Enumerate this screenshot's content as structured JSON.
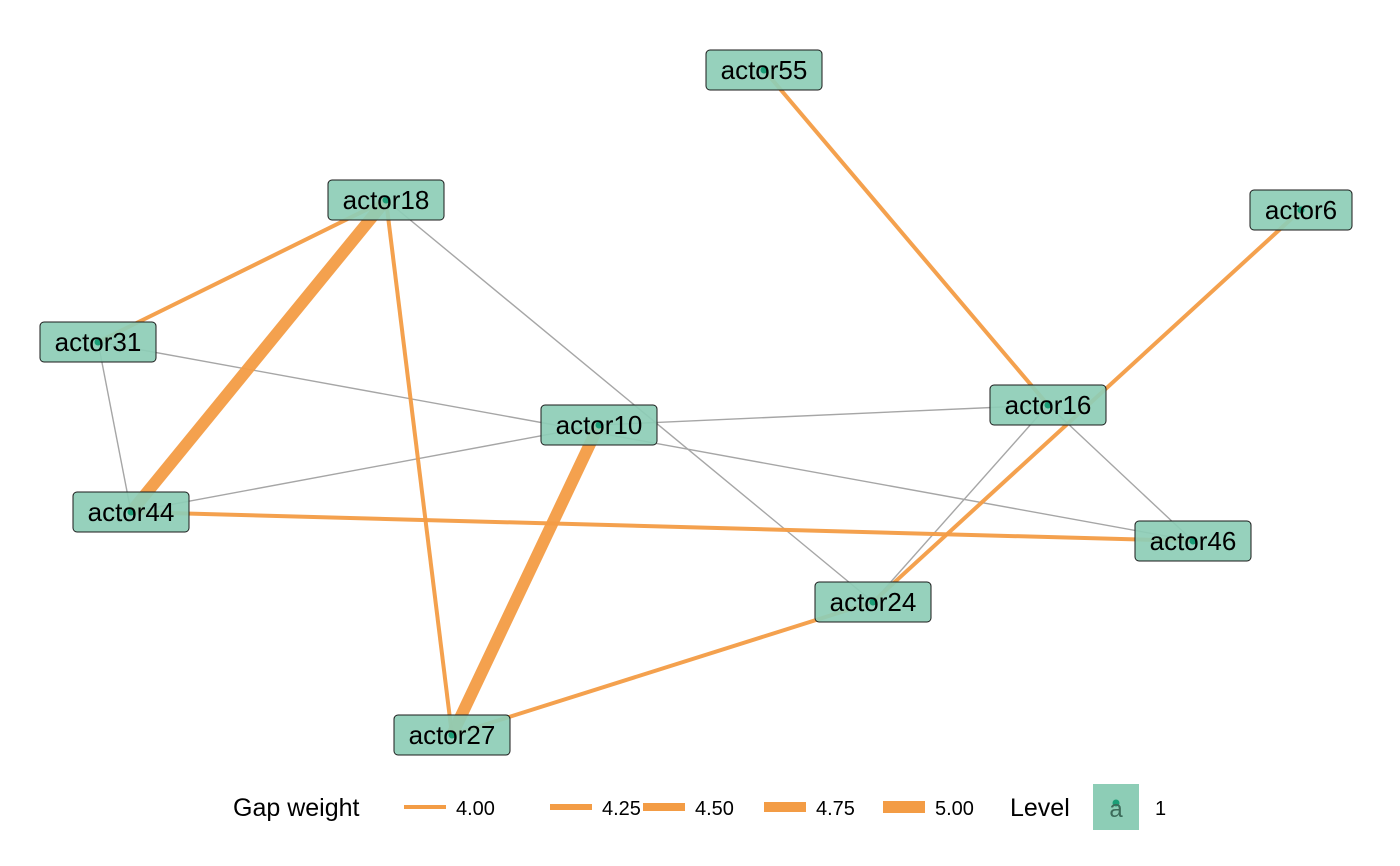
{
  "colors": {
    "node_fill": "#8dcdb6",
    "node_stroke": "#1a1a1a",
    "node_dot": "#1b9e77",
    "gap_edge": "#f39c45",
    "tie_edge": "#a6a6a6",
    "text": "#000000"
  },
  "nodes": [
    {
      "id": "actor55",
      "label": "actor55"
    },
    {
      "id": "actor18",
      "label": "actor18"
    },
    {
      "id": "actor6",
      "label": "actor6"
    },
    {
      "id": "actor31",
      "label": "actor31"
    },
    {
      "id": "actor16",
      "label": "actor16"
    },
    {
      "id": "actor10",
      "label": "actor10"
    },
    {
      "id": "actor44",
      "label": "actor44"
    },
    {
      "id": "actor46",
      "label": "actor46"
    },
    {
      "id": "actor24",
      "label": "actor24"
    },
    {
      "id": "actor27",
      "label": "actor27"
    }
  ],
  "ties": [
    {
      "from": "actor18",
      "to": "actor24"
    },
    {
      "from": "actor31",
      "to": "actor44"
    },
    {
      "from": "actor31",
      "to": "actor46"
    },
    {
      "from": "actor44",
      "to": "actor10"
    },
    {
      "from": "actor10",
      "to": "actor16"
    },
    {
      "from": "actor16",
      "to": "actor46"
    },
    {
      "from": "actor16",
      "to": "actor24"
    }
  ],
  "gaps": [
    {
      "from": "actor55",
      "to": "actor16",
      "weight": 4.0
    },
    {
      "from": "actor18",
      "to": "actor31",
      "weight": 4.0
    },
    {
      "from": "actor18",
      "to": "actor44",
      "weight": 5.0
    },
    {
      "from": "actor18",
      "to": "actor27",
      "weight": 4.0
    },
    {
      "from": "actor6",
      "to": "actor24",
      "weight": 4.0
    },
    {
      "from": "actor10",
      "to": "actor27",
      "weight": 5.0
    },
    {
      "from": "actor44",
      "to": "actor46",
      "weight": 4.0
    },
    {
      "from": "actor27",
      "to": "actor24",
      "weight": 4.0
    }
  ],
  "legend": {
    "gap_title": "Gap weight",
    "gap_items": [
      {
        "label": "4.00",
        "weight": 4.0
      },
      {
        "label": "4.25",
        "weight": 4.25
      },
      {
        "label": "4.50",
        "weight": 4.5
      },
      {
        "label": "4.75",
        "weight": 4.75
      },
      {
        "label": "5.00",
        "weight": 5.0
      }
    ],
    "level_title": "Level",
    "level_key_glyph": "a",
    "level_items": [
      {
        "label": "1"
      }
    ]
  }
}
